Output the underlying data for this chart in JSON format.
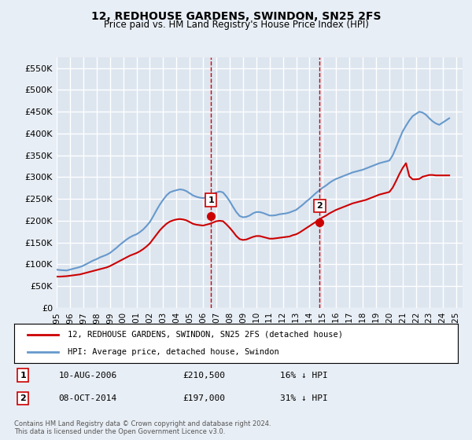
{
  "title": "12, REDHOUSE GARDENS, SWINDON, SN25 2FS",
  "subtitle": "Price paid vs. HM Land Registry's House Price Index (HPI)",
  "ylabel_ticks": [
    "£0",
    "£50K",
    "£100K",
    "£150K",
    "£200K",
    "£250K",
    "£300K",
    "£350K",
    "£400K",
    "£450K",
    "£500K",
    "£550K"
  ],
  "ytick_values": [
    0,
    50000,
    100000,
    150000,
    200000,
    250000,
    300000,
    350000,
    400000,
    450000,
    500000,
    550000
  ],
  "ylim": [
    0,
    575000
  ],
  "red_line_color": "#cc0000",
  "blue_line_color": "#6699cc",
  "vline_color": "#cc0000",
  "background_color": "#e8eef5",
  "plot_bg_color": "#dde5ef",
  "grid_color": "#ffffff",
  "sale1_date": "10-AUG-2006",
  "sale1_price": 210500,
  "sale1_label": "1",
  "sale1_pct": "16% ↓ HPI",
  "sale1_year": 2006.6,
  "sale2_date": "08-OCT-2014",
  "sale2_price": 197000,
  "sale2_label": "2",
  "sale2_pct": "31% ↓ HPI",
  "sale2_year": 2014.77,
  "legend_property": "12, REDHOUSE GARDENS, SWINDON, SN25 2FS (detached house)",
  "legend_hpi": "HPI: Average price, detached house, Swindon",
  "footnote": "Contains HM Land Registry data © Crown copyright and database right 2024.\nThis data is licensed under the Open Government Licence v3.0.",
  "hpi_years": [
    1995.0,
    1995.25,
    1995.5,
    1995.75,
    1996.0,
    1996.25,
    1996.5,
    1996.75,
    1997.0,
    1997.25,
    1997.5,
    1997.75,
    1998.0,
    1998.25,
    1998.5,
    1998.75,
    1999.0,
    1999.25,
    1999.5,
    1999.75,
    2000.0,
    2000.25,
    2000.5,
    2000.75,
    2001.0,
    2001.25,
    2001.5,
    2001.75,
    2002.0,
    2002.25,
    2002.5,
    2002.75,
    2003.0,
    2003.25,
    2003.5,
    2003.75,
    2004.0,
    2004.25,
    2004.5,
    2004.75,
    2005.0,
    2005.25,
    2005.5,
    2005.75,
    2006.0,
    2006.25,
    2006.5,
    2006.75,
    2007.0,
    2007.25,
    2007.5,
    2007.75,
    2008.0,
    2008.25,
    2008.5,
    2008.75,
    2009.0,
    2009.25,
    2009.5,
    2009.75,
    2010.0,
    2010.25,
    2010.5,
    2010.75,
    2011.0,
    2011.25,
    2011.5,
    2011.75,
    2012.0,
    2012.25,
    2012.5,
    2012.75,
    2013.0,
    2013.25,
    2013.5,
    2013.75,
    2014.0,
    2014.25,
    2014.5,
    2014.75,
    2015.0,
    2015.25,
    2015.5,
    2015.75,
    2016.0,
    2016.25,
    2016.5,
    2016.75,
    2017.0,
    2017.25,
    2017.5,
    2017.75,
    2018.0,
    2018.25,
    2018.5,
    2018.75,
    2019.0,
    2019.25,
    2019.5,
    2019.75,
    2020.0,
    2020.25,
    2020.5,
    2020.75,
    2021.0,
    2021.25,
    2021.5,
    2021.75,
    2022.0,
    2022.25,
    2022.5,
    2022.75,
    2023.0,
    2023.25,
    2023.5,
    2023.75,
    2024.0,
    2024.25,
    2024.5
  ],
  "hpi_values": [
    88000,
    87000,
    86500,
    86000,
    88000,
    90000,
    92000,
    94000,
    97000,
    101000,
    105000,
    109000,
    112000,
    116000,
    119000,
    122000,
    126000,
    132000,
    138000,
    145000,
    151000,
    157000,
    162000,
    166000,
    169000,
    174000,
    180000,
    188000,
    197000,
    210000,
    224000,
    237000,
    248000,
    258000,
    265000,
    268000,
    270000,
    272000,
    271000,
    268000,
    263000,
    258000,
    255000,
    253000,
    252000,
    254000,
    257000,
    261000,
    265000,
    267000,
    265000,
    256000,
    245000,
    232000,
    220000,
    211000,
    208000,
    209000,
    212000,
    217000,
    220000,
    220000,
    218000,
    215000,
    212000,
    212000,
    213000,
    215000,
    216000,
    217000,
    219000,
    222000,
    225000,
    231000,
    237000,
    244000,
    250000,
    257000,
    264000,
    270000,
    276000,
    281000,
    287000,
    292000,
    296000,
    299000,
    302000,
    305000,
    308000,
    311000,
    313000,
    315000,
    317000,
    320000,
    323000,
    326000,
    329000,
    332000,
    334000,
    336000,
    338000,
    350000,
    368000,
    387000,
    405000,
    418000,
    430000,
    440000,
    445000,
    450000,
    448000,
    443000,
    435000,
    428000,
    423000,
    420000,
    425000,
    430000,
    435000
  ],
  "red_years": [
    1995.0,
    1995.25,
    1995.5,
    1995.75,
    1996.0,
    1996.25,
    1996.5,
    1996.75,
    1997.0,
    1997.25,
    1997.5,
    1997.75,
    1998.0,
    1998.25,
    1998.5,
    1998.75,
    1999.0,
    1999.25,
    1999.5,
    1999.75,
    2000.0,
    2000.25,
    2000.5,
    2000.75,
    2001.0,
    2001.25,
    2001.5,
    2001.75,
    2002.0,
    2002.25,
    2002.5,
    2002.75,
    2003.0,
    2003.25,
    2003.5,
    2003.75,
    2004.0,
    2004.25,
    2004.5,
    2004.75,
    2005.0,
    2005.25,
    2005.5,
    2005.75,
    2006.0,
    2006.25,
    2006.5,
    2006.75,
    2007.0,
    2007.25,
    2007.5,
    2007.75,
    2008.0,
    2008.25,
    2008.5,
    2008.75,
    2009.0,
    2009.25,
    2009.5,
    2009.75,
    2010.0,
    2010.25,
    2010.5,
    2010.75,
    2011.0,
    2011.25,
    2011.5,
    2011.75,
    2012.0,
    2012.25,
    2012.5,
    2012.75,
    2013.0,
    2013.25,
    2013.5,
    2013.75,
    2014.0,
    2014.25,
    2014.5,
    2014.75,
    2015.0,
    2015.25,
    2015.5,
    2015.75,
    2016.0,
    2016.25,
    2016.5,
    2016.75,
    2017.0,
    2017.25,
    2017.5,
    2017.75,
    2018.0,
    2018.25,
    2018.5,
    2018.75,
    2019.0,
    2019.25,
    2019.5,
    2019.75,
    2020.0,
    2020.25,
    2020.5,
    2020.75,
    2021.0,
    2021.25,
    2021.5,
    2021.75,
    2022.0,
    2022.25,
    2022.5,
    2022.75,
    2023.0,
    2023.25,
    2023.5,
    2023.75,
    2024.0,
    2024.25,
    2024.5
  ],
  "red_values": [
    72000,
    72000,
    72500,
    73000,
    74000,
    75000,
    76000,
    77000,
    79000,
    81000,
    83000,
    85000,
    87000,
    89000,
    91000,
    93000,
    96000,
    100000,
    104000,
    108000,
    112000,
    116000,
    120000,
    123000,
    126000,
    130000,
    135000,
    141000,
    148000,
    158000,
    168000,
    178000,
    186000,
    193000,
    198000,
    201000,
    203000,
    204000,
    203000,
    201000,
    197000,
    193000,
    191000,
    190000,
    189000,
    191000,
    193000,
    196000,
    199000,
    200000,
    199000,
    192000,
    184000,
    175000,
    165000,
    158000,
    156000,
    157000,
    160000,
    163000,
    165000,
    165000,
    163000,
    161000,
    159000,
    159000,
    160000,
    161000,
    162000,
    163000,
    164000,
    167000,
    169000,
    173000,
    178000,
    183000,
    188000,
    193000,
    198000,
    203000,
    208000,
    212000,
    217000,
    221000,
    225000,
    228000,
    231000,
    234000,
    237000,
    240000,
    242000,
    244000,
    246000,
    248000,
    251000,
    254000,
    257000,
    260000,
    262000,
    264000,
    266000,
    276000,
    291000,
    307000,
    321000,
    332000,
    302000,
    295000,
    295000,
    296000,
    301000,
    303000,
    305000,
    305000,
    304000,
    304000,
    304000,
    304000,
    304000
  ],
  "xtick_years": [
    1995,
    1996,
    1997,
    1998,
    1999,
    2000,
    2001,
    2002,
    2003,
    2004,
    2005,
    2006,
    2007,
    2008,
    2009,
    2010,
    2011,
    2012,
    2013,
    2014,
    2015,
    2016,
    2017,
    2018,
    2019,
    2020,
    2021,
    2022,
    2023,
    2024,
    2025
  ]
}
